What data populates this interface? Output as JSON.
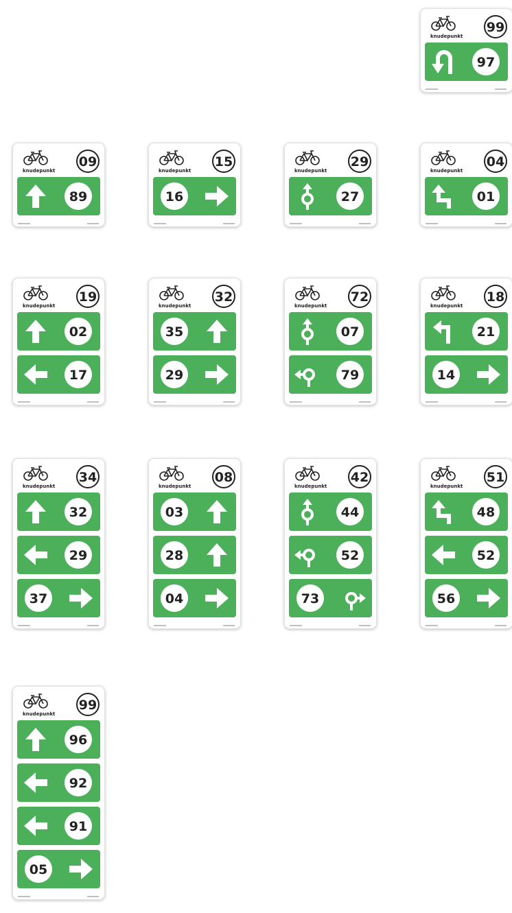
{
  "signs": [
    {
      "label": "knudepunkt",
      "number": "99",
      "rows": [
        {
          "arrow": "uturn",
          "arrow_side": "left",
          "number": "97"
        }
      ]
    },
    {
      "label": "knudepunkt",
      "number": "09",
      "rows": [
        {
          "arrow": "up",
          "arrow_side": "left",
          "number": "89"
        }
      ]
    },
    {
      "label": "knudepunkt",
      "number": "15",
      "rows": [
        {
          "arrow": "right",
          "arrow_side": "right",
          "number": "16"
        }
      ]
    },
    {
      "label": "knudepunkt",
      "number": "29",
      "rows": [
        {
          "arrow": "roundabout-up",
          "arrow_side": "left",
          "number": "27"
        }
      ]
    },
    {
      "label": "knudepunkt",
      "number": "04",
      "rows": [
        {
          "arrow": "jog-left",
          "arrow_side": "left",
          "number": "01"
        }
      ]
    },
    {
      "label": "knudepunkt",
      "number": "19",
      "rows": [
        {
          "arrow": "up",
          "arrow_side": "left",
          "number": "02"
        },
        {
          "arrow": "left",
          "arrow_side": "left",
          "number": "17"
        }
      ]
    },
    {
      "label": "knudepunkt",
      "number": "32",
      "rows": [
        {
          "arrow": "up",
          "arrow_side": "right",
          "number": "35"
        },
        {
          "arrow": "right",
          "arrow_side": "right",
          "number": "29"
        }
      ]
    },
    {
      "label": "knudepunkt",
      "number": "72",
      "rows": [
        {
          "arrow": "roundabout-up",
          "arrow_side": "left",
          "number": "07"
        },
        {
          "arrow": "roundabout-left",
          "arrow_side": "left",
          "number": "79"
        }
      ]
    },
    {
      "label": "knudepunkt",
      "number": "18",
      "rows": [
        {
          "arrow": "turn-left",
          "arrow_side": "left",
          "number": "21"
        },
        {
          "arrow": "right",
          "arrow_side": "right",
          "number": "14"
        }
      ]
    },
    {
      "label": "knudepunkt",
      "number": "34",
      "rows": [
        {
          "arrow": "up",
          "arrow_side": "left",
          "number": "32"
        },
        {
          "arrow": "left",
          "arrow_side": "left",
          "number": "29"
        },
        {
          "arrow": "right",
          "arrow_side": "right",
          "number": "37"
        }
      ]
    },
    {
      "label": "knudepunkt",
      "number": "08",
      "rows": [
        {
          "arrow": "up",
          "arrow_side": "right",
          "number": "03"
        },
        {
          "arrow": "up",
          "arrow_side": "right",
          "number": "28"
        },
        {
          "arrow": "right",
          "arrow_side": "right",
          "number": "04"
        }
      ]
    },
    {
      "label": "knudepunkt",
      "number": "42",
      "rows": [
        {
          "arrow": "roundabout-up",
          "arrow_side": "left",
          "number": "44"
        },
        {
          "arrow": "roundabout-left",
          "arrow_side": "left",
          "number": "52"
        },
        {
          "arrow": "roundabout-right",
          "arrow_side": "right",
          "number": "73"
        }
      ]
    },
    {
      "label": "knudepunkt",
      "number": "51",
      "rows": [
        {
          "arrow": "jog-left",
          "arrow_side": "left",
          "number": "48"
        },
        {
          "arrow": "left",
          "arrow_side": "left",
          "number": "52"
        },
        {
          "arrow": "right",
          "arrow_side": "right",
          "number": "56"
        }
      ]
    },
    {
      "label": "knudepunkt",
      "number": "99",
      "rows": [
        {
          "arrow": "up",
          "arrow_side": "left",
          "number": "96"
        },
        {
          "arrow": "left",
          "arrow_side": "left",
          "number": "92"
        },
        {
          "arrow": "left",
          "arrow_side": "left",
          "number": "91"
        },
        {
          "arrow": "right",
          "arrow_side": "right",
          "number": "05"
        }
      ]
    }
  ]
}
